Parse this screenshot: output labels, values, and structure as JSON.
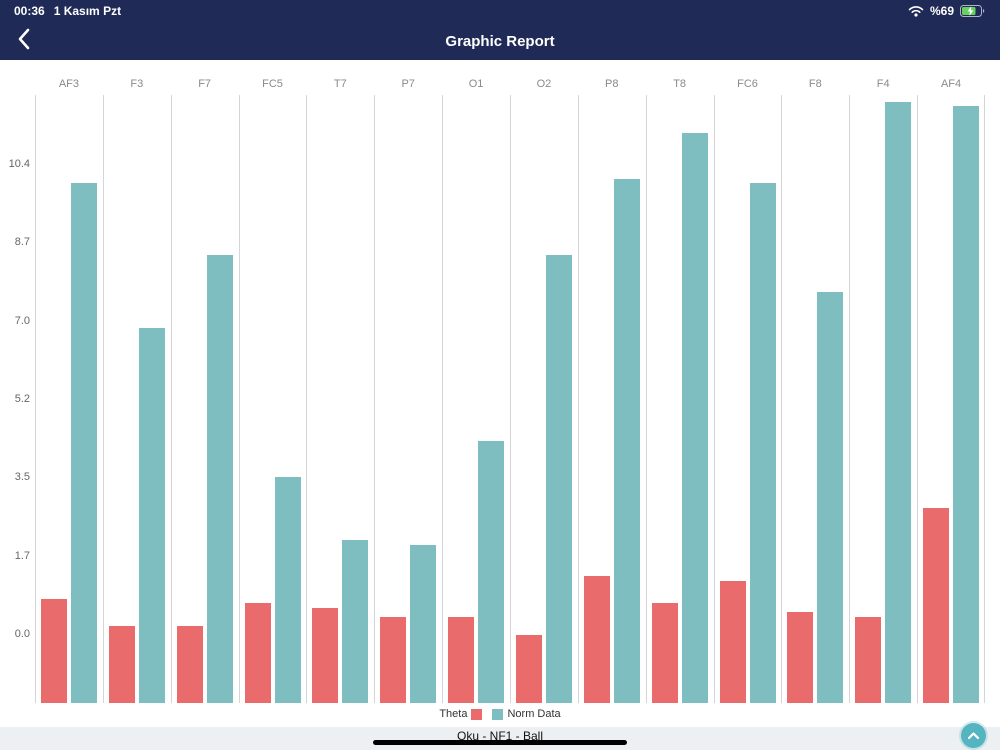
{
  "status_bar": {
    "time": "00:36",
    "date": "1 Kasım Pzt",
    "battery_percent": "%69",
    "icons": {
      "wifi": "wifi-icon",
      "battery": "battery-charging-icon"
    }
  },
  "nav_bar": {
    "title": "Graphic Report",
    "back_icon": "chevron-left-icon"
  },
  "chart_data": {
    "type": "bar",
    "title": "",
    "categories": [
      "AF3",
      "F3",
      "F7",
      "FC5",
      "T7",
      "P7",
      "O1",
      "O2",
      "P8",
      "T8",
      "FC6",
      "F8",
      "F4",
      "AF4"
    ],
    "series": [
      {
        "name": "Theta",
        "color": "#EA6B6B",
        "values": [
          0.8,
          0.2,
          0.2,
          0.7,
          0.6,
          0.4,
          0.4,
          0.0,
          1.3,
          0.7,
          1.2,
          0.5,
          0.4,
          2.8
        ]
      },
      {
        "name": "Norm Data",
        "color": "#7FBEC0",
        "values": [
          10.0,
          6.8,
          8.4,
          3.5,
          2.1,
          2.0,
          4.3,
          8.4,
          10.1,
          11.1,
          10.0,
          7.6,
          11.8,
          11.7
        ]
      }
    ],
    "y_tick_labels": [
      "0.0",
      "1.7",
      "3.5",
      "5.2",
      "7.0",
      "8.7",
      "10.4"
    ],
    "y_tick_values": [
      0.0,
      1.7333,
      3.4667,
      5.2,
      6.9333,
      8.6667,
      10.4
    ],
    "ylim": [
      -1.5,
      11.9
    ],
    "grid": "vertical-only",
    "legend_position": "bottom"
  },
  "bottom_bar": {
    "title": "Oku - NF1 - Ball",
    "scroll_top_icon": "chevron-up-icon"
  }
}
